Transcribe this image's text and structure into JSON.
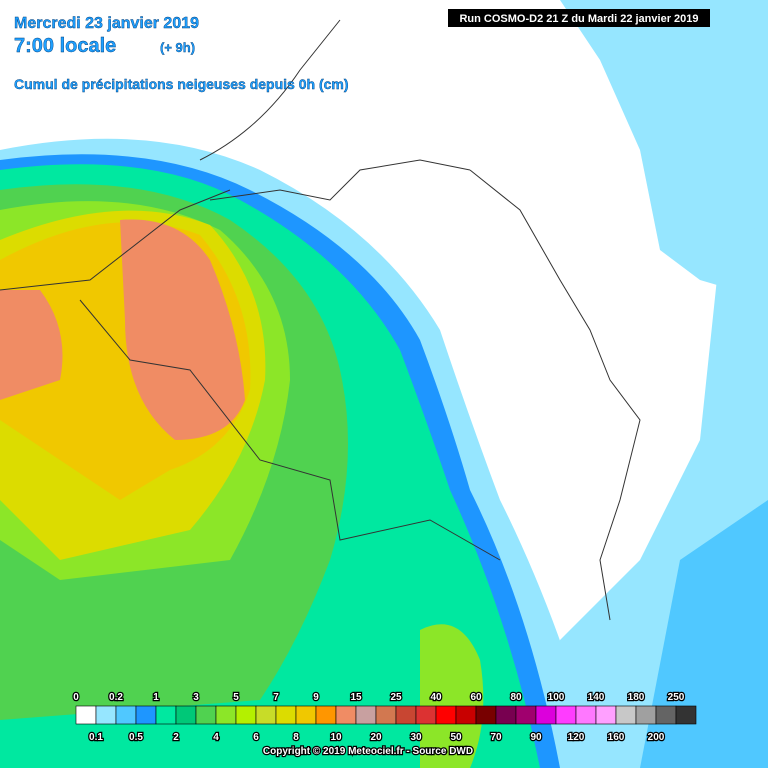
{
  "header": {
    "date": "Mercredi 23 janvier 2019",
    "time": "7:00 locale",
    "offset": "(+ 9h)",
    "subtitle": "Cumul de précipitations neigeuses depuis 0h (cm)"
  },
  "run": "Run COSMO-D2 21 Z du Mardi 22 janvier 2019",
  "legend": {
    "top_labels": [
      "0",
      "0.2",
      "1",
      "3",
      "5",
      "7",
      "9",
      "15",
      "25",
      "40",
      "60",
      "80",
      "100",
      "140",
      "180",
      "250"
    ],
    "bottom_labels": [
      "0.1",
      "0.5",
      "2",
      "4",
      "6",
      "8",
      "10",
      "20",
      "30",
      "50",
      "70",
      "90",
      "120",
      "160",
      "200"
    ],
    "colors": [
      "#ffffff",
      "#96e6ff",
      "#50c8ff",
      "#1e96ff",
      "#00e8a0",
      "#00c878",
      "#50d250",
      "#8ce628",
      "#b4f000",
      "#c8dc28",
      "#dcdc00",
      "#f0c800",
      "#ff9600",
      "#f08c64",
      "#c8a0a0",
      "#d27850",
      "#c84632",
      "#dc3232",
      "#ff0000",
      "#c80000",
      "#780000",
      "#780050",
      "#a0006e",
      "#dc00dc",
      "#ff3cff",
      "#ff78ff",
      "#ffa0ff",
      "#c8c8c8",
      "#a0a0a0",
      "#646464",
      "#333333"
    ]
  },
  "footer": "Copyright © 2019 Meteociel.fr - Source DWD"
}
